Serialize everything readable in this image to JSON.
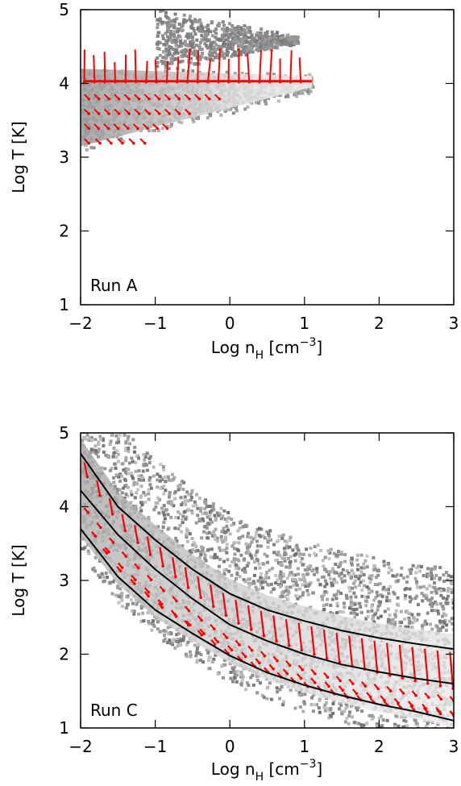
{
  "chart_data": [
    {
      "type": "scatter",
      "title": "",
      "panel_label": "Run A",
      "xlabel": {
        "main": "Log n",
        "sub": "H",
        "unit_pre": " [cm",
        "sup": "−3",
        "unit_post": "]"
      },
      "ylabel": "Log T [K]",
      "xlim": [
        -2,
        3
      ],
      "ylim": [
        1,
        5
      ],
      "xticks": [
        -2,
        -1,
        0,
        1,
        2,
        3
      ],
      "yticks": [
        1,
        2,
        3,
        4,
        5
      ],
      "xtick_labels": [
        "−2",
        "−1",
        "0",
        "1",
        "2",
        "3"
      ],
      "ytick_labels": [
        "1",
        "2",
        "3",
        "4",
        "5"
      ],
      "density_color": "#8a8a8a",
      "arrow_color": "#ff0000",
      "density_regions": [
        {
          "x0": -2,
          "x1": 1.1,
          "ylo_start": 3.15,
          "ylo_end": 3.95,
          "yhi_start": 4.2,
          "yhi_end": 4.1,
          "tone": "core"
        },
        {
          "x0": -1.0,
          "x1": 0.9,
          "ylo_start": 4.2,
          "ylo_end": 4.6,
          "yhi_start": 5.0,
          "yhi_end": 4.6,
          "tone": "halo"
        }
      ],
      "arrow_rows": [
        {
          "x_from": -1.95,
          "x_to": 0.95,
          "y": 4.02,
          "dy": 0.42,
          "dx": 0.0,
          "count": 22,
          "direction": "down-long"
        },
        {
          "x_from": -1.95,
          "x_to": -0.2,
          "y": 3.85,
          "dy": 0.06,
          "dx": 0.06,
          "count": 14,
          "direction": "small"
        },
        {
          "x_from": -1.95,
          "x_to": -0.6,
          "y": 3.65,
          "dy": 0.06,
          "dx": 0.06,
          "count": 11,
          "direction": "small"
        },
        {
          "x_from": -1.95,
          "x_to": -0.9,
          "y": 3.45,
          "dy": 0.06,
          "dx": 0.06,
          "count": 9,
          "direction": "small"
        },
        {
          "x_from": -1.95,
          "x_to": -1.2,
          "y": 3.25,
          "dy": 0.06,
          "dx": 0.06,
          "count": 6,
          "direction": "small"
        }
      ]
    },
    {
      "type": "scatter",
      "title": "",
      "panel_label": "Run C",
      "xlabel": {
        "main": "Log n",
        "sub": "H",
        "unit_pre": " [cm",
        "sup": "−3",
        "unit_post": "]"
      },
      "ylabel": "Log T [K]",
      "xlim": [
        -2,
        3
      ],
      "ylim": [
        1,
        5
      ],
      "xticks": [
        -2,
        -1,
        0,
        1,
        2,
        3
      ],
      "yticks": [
        1,
        2,
        3,
        4,
        5
      ],
      "xtick_labels": [
        "−2",
        "−1",
        "0",
        "1",
        "2",
        "3"
      ],
      "ytick_labels": [
        "1",
        "2",
        "3",
        "4",
        "5"
      ],
      "density_color": "#8a8a8a",
      "arrow_color": "#ff0000",
      "curves": [
        {
          "name": "",
          "x": [
            -2,
            -1.5,
            -1,
            -0.5,
            0,
            0.5,
            1,
            1.5,
            2,
            2.5,
            3
          ],
          "y": [
            4.72,
            4.0,
            3.55,
            3.15,
            2.82,
            2.6,
            2.45,
            2.32,
            2.22,
            2.14,
            2.07
          ]
        },
        {
          "name": "",
          "x": [
            -2,
            -1.5,
            -1,
            -0.5,
            0,
            0.5,
            1,
            1.5,
            2,
            2.5,
            3
          ],
          "y": [
            4.22,
            3.62,
            3.15,
            2.75,
            2.4,
            2.18,
            2.0,
            1.86,
            1.76,
            1.67,
            1.6
          ]
        },
        {
          "name": "",
          "x": [
            -2,
            -1.5,
            -1,
            -0.5,
            0,
            0.5,
            1,
            1.5,
            2,
            2.5,
            3
          ],
          "y": [
            3.7,
            3.05,
            2.6,
            2.28,
            1.98,
            1.75,
            1.58,
            1.44,
            1.32,
            1.22,
            1.1
          ]
        }
      ],
      "arrow_rows": [
        {
          "x_from": -1.95,
          "x_to": 2.95,
          "curve": 0,
          "offset": -0.05,
          "dy": -0.38,
          "count": 30,
          "direction": "down-long"
        },
        {
          "x_from": -1.95,
          "x_to": 2.95,
          "curve": 1,
          "offset": -0.18,
          "dy": -0.06,
          "count": 30,
          "direction": "small"
        },
        {
          "x_from": -1.85,
          "x_to": 2.95,
          "curve": 1,
          "offset": -0.38,
          "dy": -0.06,
          "count": 28,
          "direction": "small"
        },
        {
          "x_from": -1.7,
          "x_to": 2.95,
          "curve": 2,
          "offset": 0.12,
          "dy": -0.06,
          "count": 26,
          "direction": "small"
        }
      ]
    }
  ]
}
